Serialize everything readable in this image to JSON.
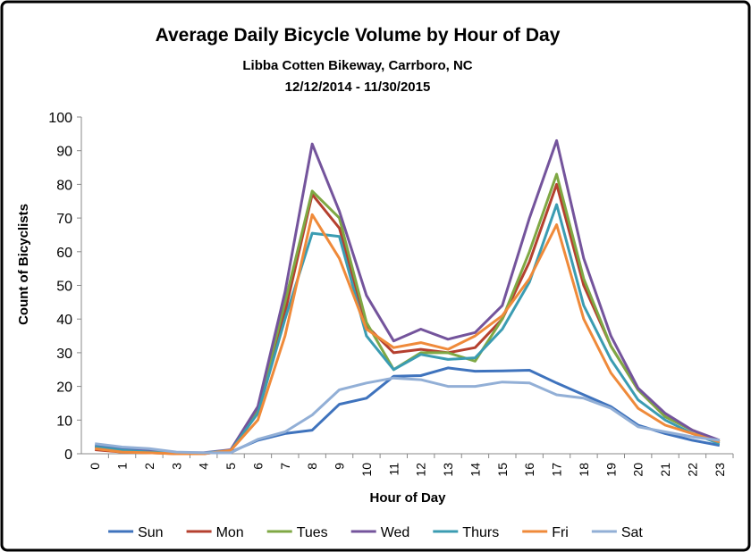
{
  "chart_data": {
    "type": "line",
    "title": "Average Daily Bicycle Volume by Hour of Day",
    "subtitle": "Libba Cotten Bikeway, Carrboro, NC",
    "date_range": "12/12/2014 - 11/30/2015",
    "x_label": "Hour of Day",
    "y_label": "Count of Bicyclists",
    "categories": [
      "0",
      "1",
      "2",
      "3",
      "4",
      "5",
      "6",
      "7",
      "8",
      "9",
      "10",
      "11",
      "12",
      "13",
      "14",
      "15",
      "16",
      "17",
      "18",
      "19",
      "20",
      "21",
      "22",
      "23"
    ],
    "ylim": [
      0,
      100
    ],
    "yticks": [
      0,
      10,
      20,
      30,
      40,
      50,
      60,
      70,
      80,
      90,
      100
    ],
    "grid": false,
    "legend": "bottom",
    "series": [
      {
        "name": "Sun",
        "color": "#3f73bd",
        "values": [
          2.5,
          1.5,
          1,
          0.3,
          0.2,
          0.5,
          4,
          6,
          7,
          14.7,
          16.5,
          23,
          23.2,
          25.5,
          24.5,
          24.6,
          24.8,
          21,
          17.5,
          14,
          8.5,
          6,
          4,
          2.5
        ]
      },
      {
        "name": "Mon",
        "color": "#b5402f",
        "values": [
          1.2,
          0.5,
          0.3,
          0,
          0,
          1,
          13,
          42,
          77,
          67,
          38,
          30,
          31,
          30,
          31.5,
          40,
          57,
          80,
          50,
          32,
          19,
          11,
          7,
          3.5
        ]
      },
      {
        "name": "Tues",
        "color": "#7fa844",
        "values": [
          2,
          1,
          0.5,
          0.2,
          0.2,
          1,
          13,
          45,
          78,
          70,
          39,
          25,
          30,
          30,
          27.5,
          40,
          60,
          83,
          52,
          32,
          19,
          11,
          7,
          3.5
        ]
      },
      {
        "name": "Wed",
        "color": "#74549c",
        "values": [
          2,
          1,
          0.7,
          0.3,
          0.3,
          1.2,
          14,
          48,
          92,
          72,
          47,
          33.5,
          37,
          34,
          36,
          44,
          70,
          93,
          58,
          35,
          19.5,
          12,
          7,
          4
        ]
      },
      {
        "name": "Thurs",
        "color": "#3b9cb2",
        "values": [
          2,
          1,
          0.5,
          0.2,
          0.2,
          1,
          12,
          40,
          65.5,
          64.5,
          35,
          25,
          29.5,
          28,
          28.5,
          37,
          51,
          74,
          44,
          28,
          16,
          10,
          6,
          3
        ]
      },
      {
        "name": "Fri",
        "color": "#ef8a3a",
        "values": [
          1.5,
          0.5,
          0.3,
          0,
          0,
          1,
          10,
          35,
          71,
          58,
          37,
          31.5,
          33,
          31,
          35,
          41,
          52,
          68,
          40,
          24,
          13.5,
          8.5,
          6,
          3.5
        ]
      },
      {
        "name": "Sat",
        "color": "#92afd6",
        "values": [
          3,
          2,
          1.5,
          0.5,
          0.3,
          0.3,
          4.3,
          6.5,
          11.5,
          19,
          21,
          22.5,
          22,
          20,
          20,
          21.3,
          21,
          17.5,
          16.5,
          13.5,
          8,
          6.5,
          5,
          4
        ]
      }
    ]
  }
}
